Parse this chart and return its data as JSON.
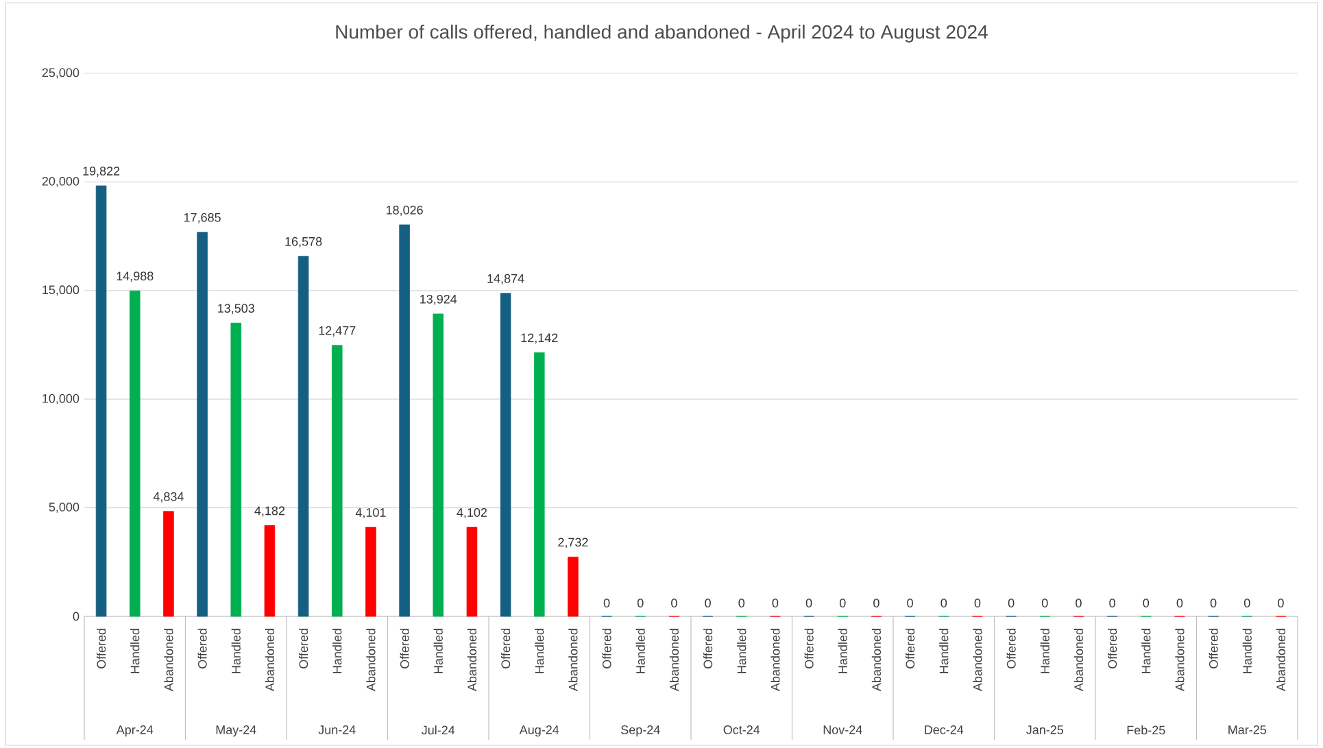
{
  "chart_data": {
    "type": "bar",
    "title": "Number of calls offered, handled and abandoned - April 2024 to August 2024",
    "categories": [
      "Apr-24",
      "May-24",
      "Jun-24",
      "Jul-24",
      "Aug-24",
      "Sep-24",
      "Oct-24",
      "Nov-24",
      "Dec-24",
      "Jan-25",
      "Feb-25",
      "Mar-25"
    ],
    "series": [
      {
        "name": "Offered",
        "color": "#156082",
        "values": [
          19822,
          17685,
          16578,
          18026,
          14874,
          0,
          0,
          0,
          0,
          0,
          0,
          0
        ],
        "value_labels": [
          "19,822",
          "17,685",
          "16,578",
          "18,026",
          "14,874",
          "0",
          "0",
          "0",
          "0",
          "0",
          "0",
          "0"
        ]
      },
      {
        "name": "Handled",
        "color": "#00b050",
        "values": [
          14988,
          13503,
          12477,
          13924,
          12142,
          0,
          0,
          0,
          0,
          0,
          0,
          0
        ],
        "value_labels": [
          "14,988",
          "13,503",
          "12,477",
          "13,924",
          "12,142",
          "0",
          "0",
          "0",
          "0",
          "0",
          "0",
          "0"
        ]
      },
      {
        "name": "Abandoned",
        "color": "#ff0000",
        "values": [
          4834,
          4182,
          4101,
          4102,
          2732,
          0,
          0,
          0,
          0,
          0,
          0,
          0
        ],
        "value_labels": [
          "4,834",
          "4,182",
          "4,101",
          "4,102",
          "2,732",
          "0",
          "0",
          "0",
          "0",
          "0",
          "0",
          "0"
        ]
      }
    ],
    "ylim": [
      0,
      25000
    ],
    "yticks": [
      0,
      {
        "value": 5000,
        "label": "5,000"
      },
      {
        "value": 10000,
        "label": "10,000"
      },
      {
        "value": 15000,
        "label": "15,000"
      },
      {
        "value": 20000,
        "label": "20,000"
      },
      {
        "value": 25000,
        "label": "25,000"
      }
    ],
    "grid": "y"
  }
}
